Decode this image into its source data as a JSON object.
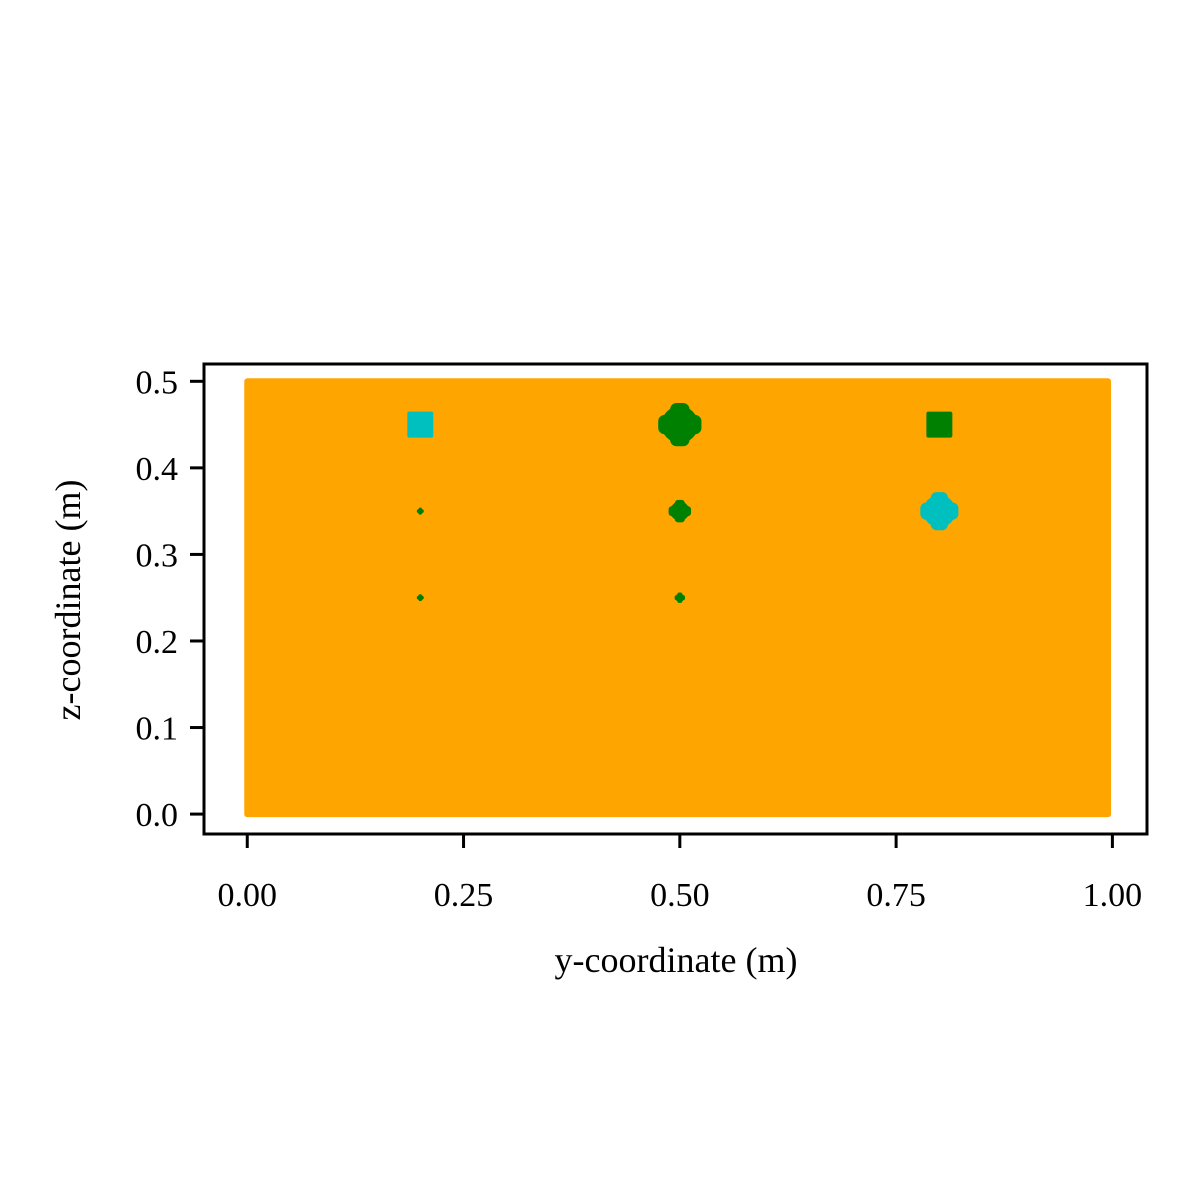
{
  "chart_data": {
    "type": "scatter",
    "xlabel": "y-coordinate (m)",
    "ylabel": "z-coordinate (m)",
    "xlim": [
      -0.05,
      1.04
    ],
    "ylim": [
      -0.023,
      0.52
    ],
    "xticks": [
      0.0,
      0.25,
      0.5,
      0.75,
      1.0
    ],
    "xtick_labels": [
      "0.00",
      "0.25",
      "0.50",
      "0.75",
      "1.00"
    ],
    "yticks": [
      0.0,
      0.1,
      0.2,
      0.3,
      0.4,
      0.5
    ],
    "ytick_labels": [
      "0.0",
      "0.1",
      "0.2",
      "0.3",
      "0.4",
      "0.5"
    ],
    "grid": false,
    "background_region": {
      "color": "#FFA500",
      "y_range": [
        0.0,
        0.995
      ],
      "z_range": [
        0.0,
        0.5
      ],
      "spacing": 0.005
    },
    "clusters": [
      {
        "y": 0.2,
        "z": 0.45,
        "radius": 0.015,
        "shape": "square",
        "color": "#00BFBF"
      },
      {
        "y": 0.5,
        "z": 0.45,
        "radius": 0.025,
        "shape": "blob",
        "color": "#008000"
      },
      {
        "y": 0.8,
        "z": 0.45,
        "radius": 0.015,
        "shape": "square",
        "color": "#008000"
      },
      {
        "y": 0.2,
        "z": 0.35,
        "radius": 0.004,
        "shape": "blob",
        "color": "#008000"
      },
      {
        "y": 0.5,
        "z": 0.35,
        "radius": 0.013,
        "shape": "blob",
        "color": "#008000"
      },
      {
        "y": 0.8,
        "z": 0.35,
        "radius": 0.022,
        "shape": "blob",
        "color": "#00BFBF"
      },
      {
        "y": 0.2,
        "z": 0.25,
        "radius": 0.004,
        "shape": "blob",
        "color": "#008000"
      },
      {
        "y": 0.5,
        "z": 0.25,
        "radius": 0.006,
        "shape": "blob",
        "color": "#008000"
      }
    ]
  }
}
